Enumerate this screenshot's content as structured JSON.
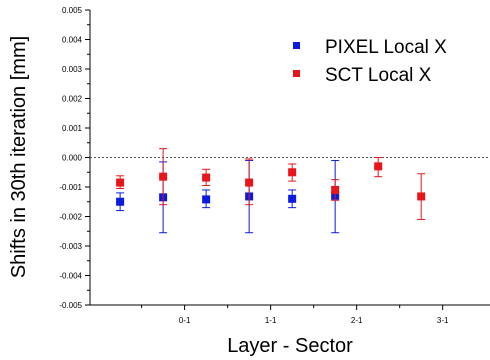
{
  "chart_data": {
    "type": "scatter",
    "xlabel": "Layer - Sector",
    "ylabel": "Shifts in 30th iteration [mm]",
    "x_ticks": [
      {
        "x": 1,
        "label": "0-1"
      },
      {
        "x": 2,
        "label": "1-1"
      },
      {
        "x": 3,
        "label": "2-1"
      },
      {
        "x": 4,
        "label": "3-1"
      }
    ],
    "x_minor_ticks": [
      0.5,
      1.5,
      2.5,
      3.5
    ],
    "xlim": [
      -0.1,
      4.55
    ],
    "ylim": [
      -0.005,
      0.005
    ],
    "y_ticks": [
      {
        "value": 0.005,
        "label": "0.005"
      },
      {
        "value": 0.004,
        "label": "0.004"
      },
      {
        "value": 0.003,
        "label": "0.003"
      },
      {
        "value": 0.002,
        "label": "0.002"
      },
      {
        "value": 0.001,
        "label": "0.001"
      },
      {
        "value": 0.0,
        "label": "0.000"
      },
      {
        "value": -0.001,
        "label": "-0.001"
      },
      {
        "value": -0.002,
        "label": "-0.002"
      },
      {
        "value": -0.003,
        "label": "-0.003"
      },
      {
        "value": -0.004,
        "label": "-0.004"
      },
      {
        "value": -0.005,
        "label": "-0.005"
      }
    ],
    "reference_line": {
      "y": 0.0,
      "style": "dotted"
    },
    "legend_position": "top-right",
    "series": [
      {
        "name": "PIXEL Local X",
        "color": "#0a1adf",
        "marker": "square",
        "points": [
          {
            "x": 0.25,
            "y": -0.0015,
            "err_low": -0.0018,
            "err_high": -0.0012
          },
          {
            "x": 0.75,
            "y": -0.00135,
            "err_low": -0.00255,
            "err_high": -0.00015
          },
          {
            "x": 1.25,
            "y": -0.00142,
            "err_low": -0.0017,
            "err_high": -0.0011
          },
          {
            "x": 1.75,
            "y": -0.00132,
            "err_low": -0.00255,
            "err_high": -0.0001
          },
          {
            "x": 2.25,
            "y": -0.0014,
            "err_low": -0.0017,
            "err_high": -0.0011
          },
          {
            "x": 2.75,
            "y": -0.0013,
            "err_low": -0.00255,
            "err_high": -0.0001
          }
        ]
      },
      {
        "name": "SCT Local X",
        "color": "#e8161a",
        "marker": "square",
        "points": [
          {
            "x": 0.25,
            "y": -0.00085,
            "err_low": -0.00105,
            "err_high": -0.00062
          },
          {
            "x": 0.75,
            "y": -0.00065,
            "err_low": -0.0016,
            "err_high": 0.0003
          },
          {
            "x": 1.25,
            "y": -0.00068,
            "err_low": -0.00095,
            "err_high": -0.0004
          },
          {
            "x": 1.75,
            "y": -0.00085,
            "err_low": -0.0016,
            "err_high": -5e-05
          },
          {
            "x": 2.25,
            "y": -0.0005,
            "err_low": -0.0008,
            "err_high": -0.00022
          },
          {
            "x": 2.75,
            "y": -0.0011,
            "err_low": -0.00145,
            "err_high": -0.00075
          },
          {
            "x": 3.25,
            "y": -0.0003,
            "err_low": -0.00065,
            "err_high": 0.0
          },
          {
            "x": 3.75,
            "y": -0.00132,
            "err_low": -0.0021,
            "err_high": -0.00055
          }
        ]
      }
    ]
  }
}
